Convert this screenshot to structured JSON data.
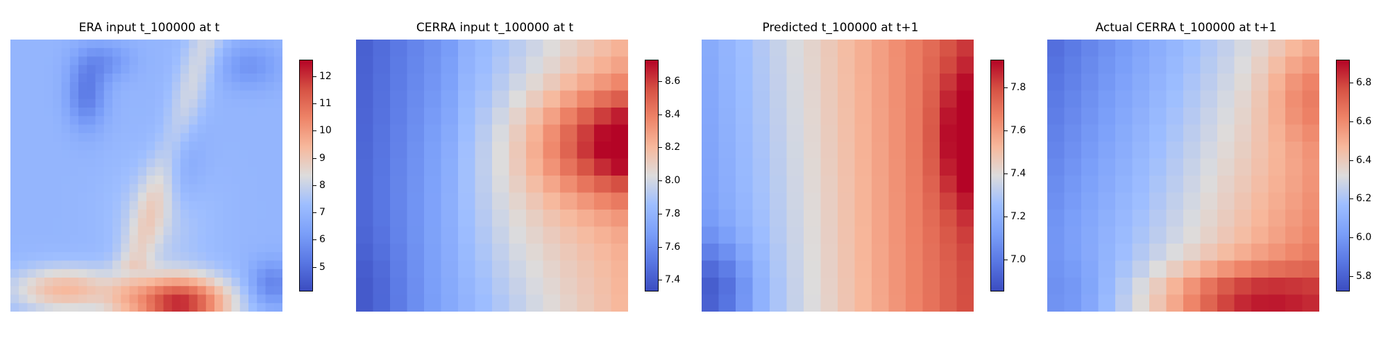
{
  "chart_data": [
    {
      "type": "heatmap",
      "title": "ERA input t_100000 at t",
      "rows": 32,
      "cols": 32,
      "vmin": 4.1,
      "vmax": 12.6,
      "colormap": "coolwarm",
      "colorbar_ticks": [
        5,
        6,
        7,
        8,
        9,
        10,
        11,
        12
      ],
      "pattern": "era"
    },
    {
      "type": "heatmap",
      "title": "CERRA input t_100000 at t",
      "rows": 16,
      "cols": 16,
      "vmin": 7.33,
      "vmax": 8.73,
      "colormap": "coolwarm",
      "colorbar_ticks": [
        7.4,
        7.6,
        7.8,
        8.0,
        8.2,
        8.4,
        8.6
      ],
      "pattern": "cerra_input"
    },
    {
      "type": "heatmap",
      "title": "Predicted t_100000 at t+1",
      "rows": 16,
      "cols": 16,
      "vmin": 6.85,
      "vmax": 7.93,
      "colormap": "coolwarm",
      "colorbar_ticks": [
        7.0,
        7.2,
        7.4,
        7.6,
        7.8
      ],
      "pattern": "predicted"
    },
    {
      "type": "heatmap",
      "title": "Actual CERRA t_100000 at t+1",
      "rows": 16,
      "cols": 16,
      "vmin": 5.72,
      "vmax": 6.92,
      "colormap": "coolwarm",
      "colorbar_ticks": [
        5.8,
        6.0,
        6.2,
        6.4,
        6.6,
        6.8
      ],
      "pattern": "actual"
    }
  ]
}
